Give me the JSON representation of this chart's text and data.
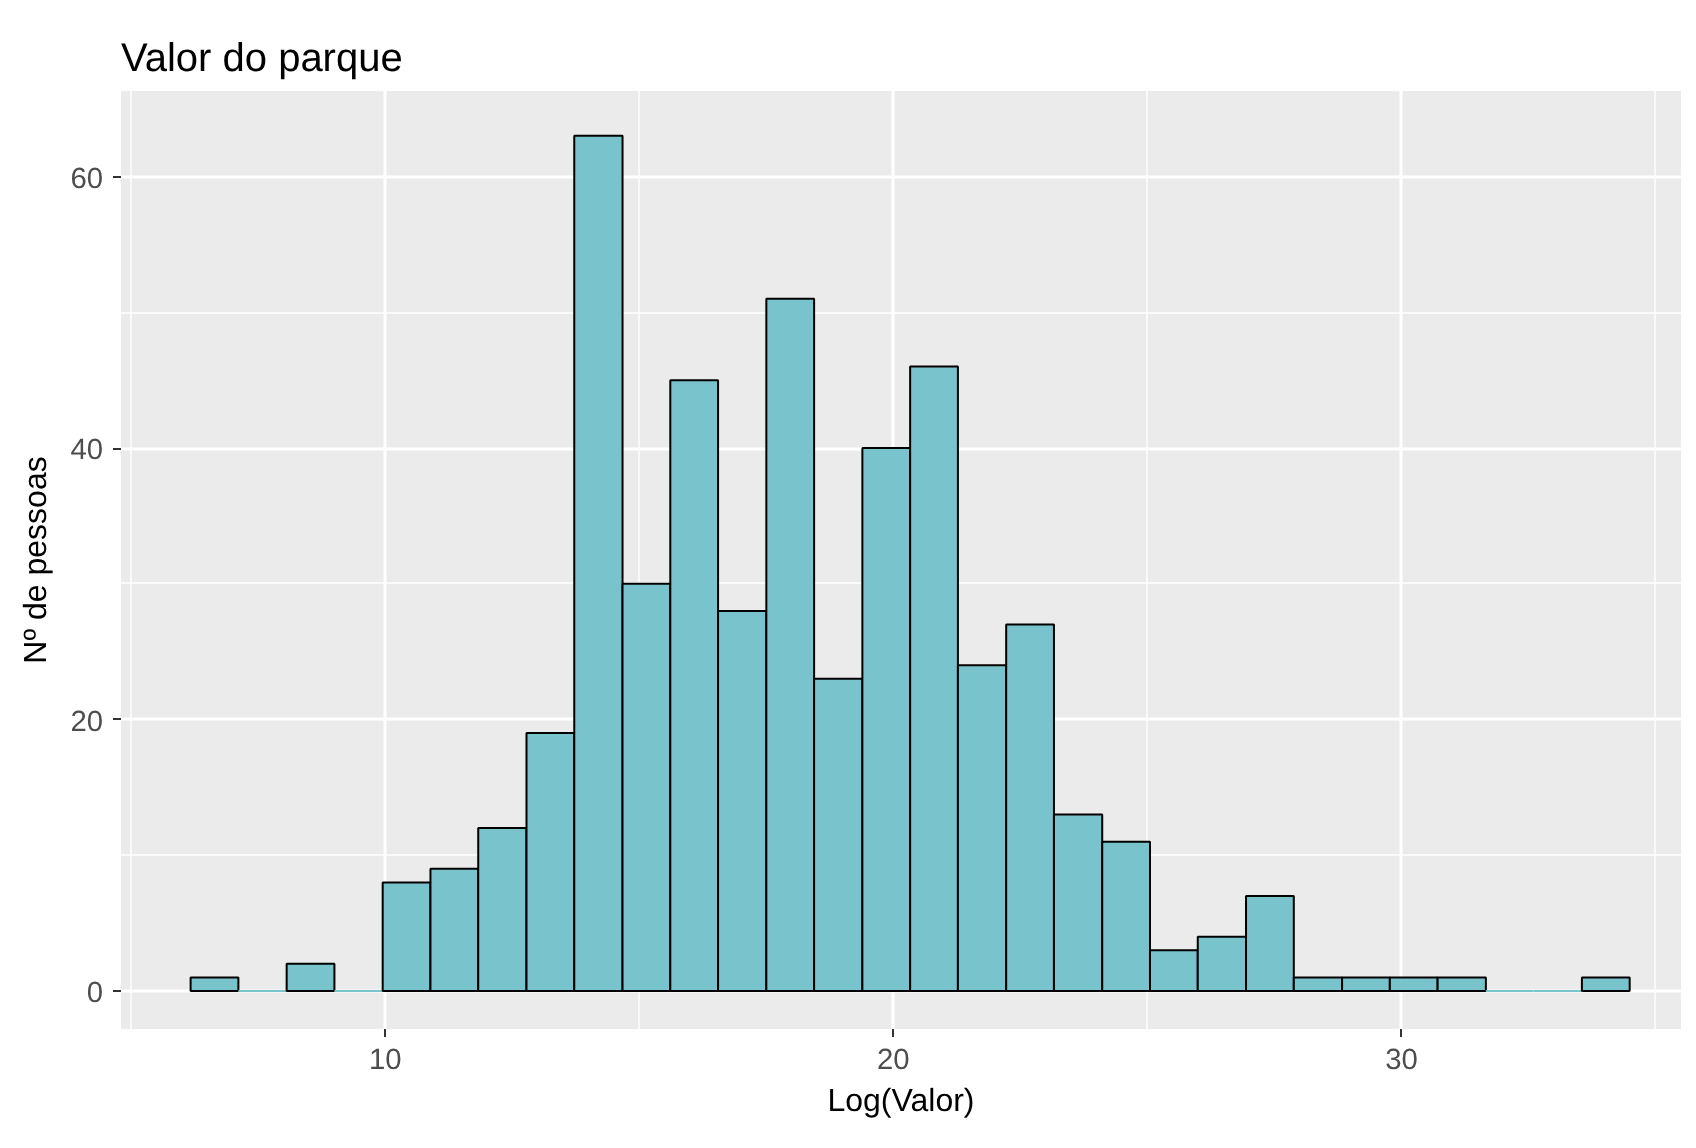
{
  "chart_data": {
    "type": "histogram",
    "title": "Valor do parque",
    "xlabel": "Log(Valor)",
    "ylabel": "Nº de pessoas",
    "bins": [
      6.17,
      7.11,
      8.06,
      9.0,
      9.95,
      10.89,
      11.83,
      12.78,
      13.72,
      14.67,
      15.61,
      16.55,
      17.5,
      18.44,
      19.39,
      20.33,
      21.27,
      22.22,
      23.16,
      24.11,
      25.05,
      25.99,
      26.94,
      27.88,
      28.83,
      29.77,
      30.71,
      31.66,
      32.6,
      33.55,
      34.49
    ],
    "values": [
      1,
      0,
      2,
      0,
      8,
      9,
      12,
      19,
      63,
      30,
      45,
      28,
      51,
      23,
      40,
      46,
      24,
      27,
      13,
      11,
      3,
      4,
      7,
      1,
      1,
      1,
      1,
      0,
      0,
      1
    ],
    "color": "#79c4cc",
    "xlim": [
      4.8,
      35.5
    ],
    "ylim": [
      -2.8,
      66.3
    ],
    "xticks": [
      10,
      20,
      30
    ],
    "yticks": [
      0,
      20,
      40,
      60
    ],
    "grid": true
  }
}
